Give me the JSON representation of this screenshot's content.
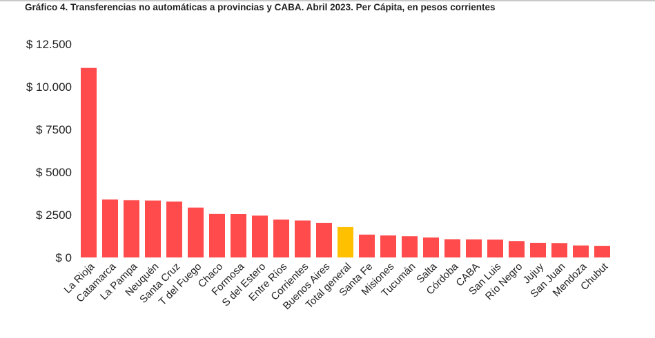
{
  "chart_data": {
    "type": "bar",
    "title": "Gráfico 4. Transferencias no automáticas a provincias y CABA. Abril 2023. Per Cápita, en pesos corrientes",
    "xlabel": "",
    "ylabel": "",
    "ylim": [
      0,
      12500
    ],
    "y_ticks": [
      {
        "value": 0,
        "label": "$ 0"
      },
      {
        "value": 2500,
        "label": "$ 2500"
      },
      {
        "value": 5000,
        "label": "$ 5000"
      },
      {
        "value": 7500,
        "label": "$ 7500"
      },
      {
        "value": 10000,
        "label": "$ 10.000"
      },
      {
        "value": 12500,
        "label": "$ 12.500"
      }
    ],
    "grid": false,
    "categories": [
      "La Rioja",
      "Catamarca",
      "La Pampa",
      "Neuquén",
      "Santa Cruz",
      "T del Fuego",
      "Chaco",
      "Formosa",
      "S del Estero",
      "Entre Ríos",
      "Corrientes",
      "Buenos Aires",
      "Total general",
      "Santa Fe",
      "Misiones",
      "Tucumán",
      "Salta",
      "Córdoba",
      "CABA",
      "San Luis",
      "Río Negro",
      "Jujuy",
      "San Juan",
      "Mendoza",
      "Chubut"
    ],
    "values": [
      11100,
      3400,
      3350,
      3330,
      3280,
      2920,
      2550,
      2540,
      2450,
      2220,
      2160,
      2020,
      1780,
      1340,
      1290,
      1240,
      1170,
      1070,
      1060,
      1050,
      960,
      850,
      840,
      700,
      680
    ],
    "highlight": "Total general",
    "colors": {
      "bar": "#ff4b4b",
      "highlight": "#ffc000"
    }
  }
}
